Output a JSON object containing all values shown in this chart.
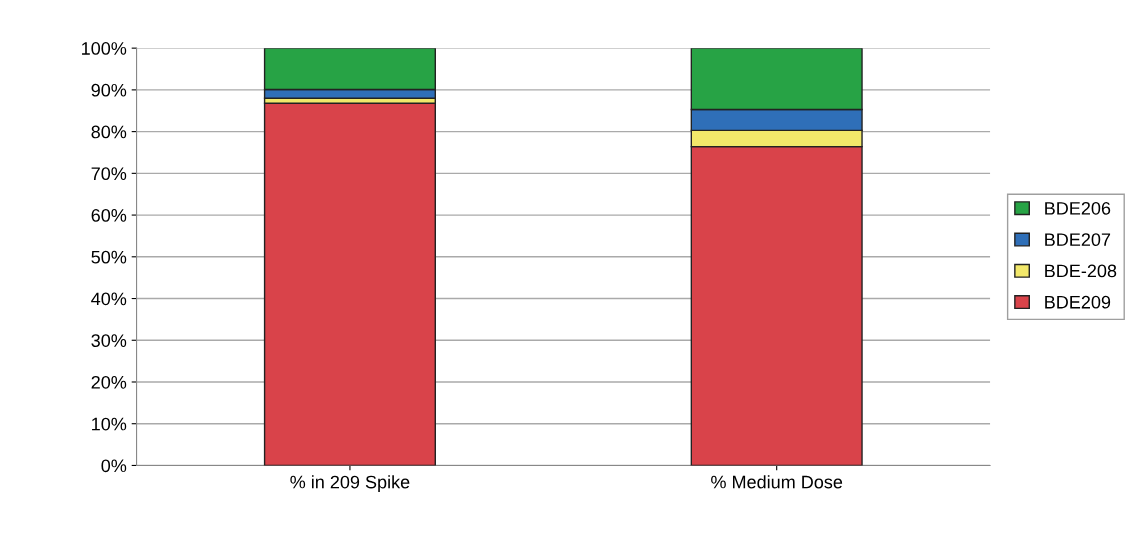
{
  "chart_data": {
    "type": "bar",
    "stacked": true,
    "categories": [
      "% in 209 Spike",
      "% Medium Dose"
    ],
    "series": [
      {
        "name": "BDE209",
        "color": "#d9434a",
        "values": [
          86.8,
          76.4
        ]
      },
      {
        "name": "BDE-208",
        "color": "#f2e86a",
        "values": [
          1.2,
          3.9
        ]
      },
      {
        "name": "BDE207",
        "color": "#2f6fb8",
        "values": [
          2.1,
          5.0
        ]
      },
      {
        "name": "BDE206",
        "color": "#27a345",
        "values": [
          9.9,
          14.7
        ]
      }
    ],
    "ylim": [
      0,
      100
    ],
    "yticks": [
      {
        "value": 0,
        "label": "0%"
      },
      {
        "value": 10,
        "label": "10%"
      },
      {
        "value": 20,
        "label": "20%"
      },
      {
        "value": 30,
        "label": "30%"
      },
      {
        "value": 40,
        "label": "40%"
      },
      {
        "value": 50,
        "label": "50%"
      },
      {
        "value": 60,
        "label": "60%"
      },
      {
        "value": 70,
        "label": "70%"
      },
      {
        "value": 80,
        "label": "80%"
      },
      {
        "value": 90,
        "label": "90%"
      },
      {
        "value": 100,
        "label": "100%"
      }
    ],
    "grid": "y",
    "legend": "right"
  }
}
